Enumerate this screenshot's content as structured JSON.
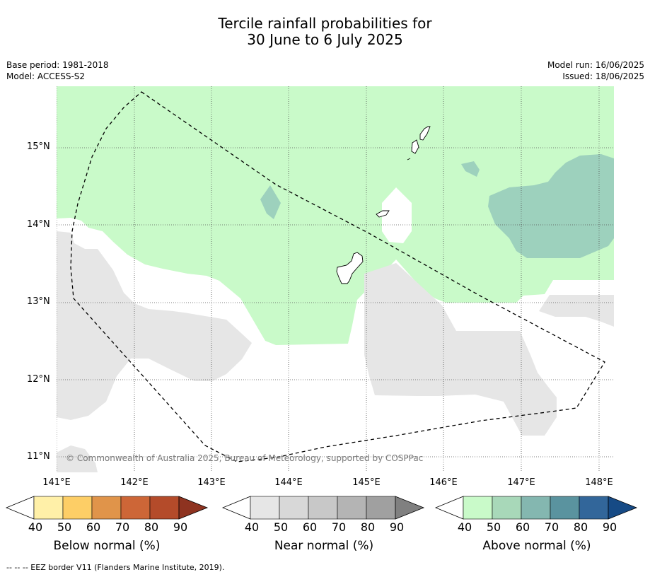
{
  "title": {
    "line1": "Tercile rainfall probabilities for",
    "line2": "30 June to 6 July 2025"
  },
  "meta_left": {
    "base_period": "Base period: 1981-2018",
    "model": "Model: ACCESS-S2"
  },
  "meta_right": {
    "model_run": "Model run: 16/06/2025",
    "issued": "Issued: 18/06/2025"
  },
  "map": {
    "lat_labels": [
      "15°N",
      "14°N",
      "13°N",
      "12°N",
      "11°N"
    ],
    "lon_labels": [
      "141°E",
      "142°E",
      "143°E",
      "144°E",
      "145°E",
      "146°E",
      "147°E",
      "148°E"
    ],
    "copyright": "© Commonwealth of Australia 2025, Bureau of Meteorology, supported by COSPPac",
    "colors": {
      "above_40": "#c9fac9",
      "above_50": "#9dd1bd",
      "near_40": "#e6e6e6",
      "eez_line": "#000000"
    }
  },
  "colorbars": [
    {
      "title": "Below normal (%)",
      "ticks": [
        "40",
        "50",
        "60",
        "70",
        "80",
        "90"
      ],
      "colors": [
        "#fff0a8",
        "#fdce66",
        "#e0944a",
        "#cd6637",
        "#b44b2a",
        "#8e3320"
      ]
    },
    {
      "title": "Near normal (%)",
      "ticks": [
        "40",
        "50",
        "60",
        "70",
        "80",
        "90"
      ],
      "colors": [
        "#e6e6e6",
        "#d8d8d8",
        "#c8c8c8",
        "#b4b4b4",
        "#a0a0a0",
        "#808080"
      ]
    },
    {
      "title": "Above normal (%)",
      "ticks": [
        "40",
        "50",
        "60",
        "70",
        "80",
        "90"
      ],
      "colors": [
        "#c9fac9",
        "#a8d8b9",
        "#84b7b0",
        "#5a939f",
        "#32669a",
        "#164a85"
      ]
    }
  ],
  "footnote": "--  --  -- EEZ border V11 (Flanders Marine Institute, 2019)."
}
